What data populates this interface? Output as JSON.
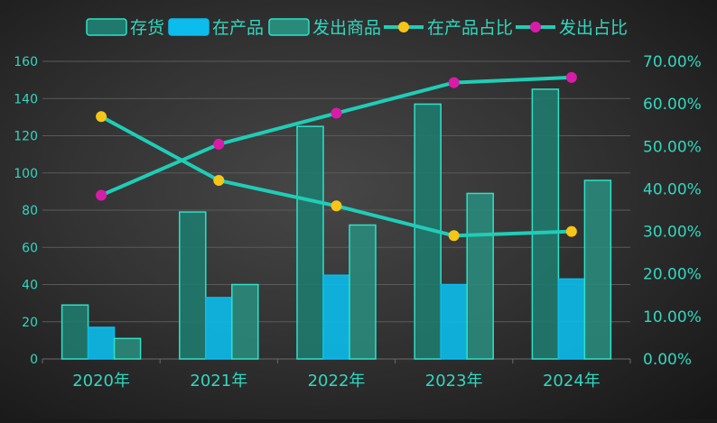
{
  "chart_data": {
    "type": "bar",
    "categories": [
      "2020年",
      "2021年",
      "2022年",
      "2023年",
      "2024年"
    ],
    "series": [
      {
        "name": "存货",
        "type": "bar",
        "axis": "left",
        "color": "#1f7a6d",
        "stroke": "#2fe0c8",
        "values": [
          29,
          79,
          125,
          137,
          145
        ]
      },
      {
        "name": "在产品",
        "type": "bar",
        "axis": "left",
        "color": "#0bbcec",
        "stroke": "#0bbcec",
        "values": [
          17,
          33,
          45,
          40,
          43
        ]
      },
      {
        "name": "发出商品",
        "type": "bar",
        "axis": "left",
        "color": "#2a8a7a",
        "stroke": "#2fe0c8",
        "values": [
          11,
          40,
          72,
          89,
          96
        ]
      },
      {
        "name": "在产品占比",
        "type": "line",
        "axis": "right",
        "color": "#1fcdb7",
        "marker": "#f5c518",
        "values": [
          57.0,
          42.0,
          36.0,
          29.0,
          30.0
        ]
      },
      {
        "name": "发出占比",
        "type": "line",
        "axis": "right",
        "color": "#1fcdb7",
        "marker": "#d91ca8",
        "values": [
          38.5,
          50.5,
          57.8,
          65.0,
          66.2
        ]
      }
    ],
    "y_left": {
      "min": 0,
      "max": 160,
      "step": 20,
      "ticks": [
        "0",
        "20",
        "40",
        "60",
        "80",
        "100",
        "120",
        "140",
        "160"
      ]
    },
    "y_right": {
      "min": 0,
      "max": 70,
      "step": 10,
      "ticks": [
        "0.00%",
        "10.00%",
        "20.00%",
        "30.00%",
        "40.00%",
        "50.00%",
        "60.00%",
        "70.00%"
      ]
    },
    "grid": true,
    "legend_position": "top-right",
    "colors": {
      "axis_text": "#33d6bf",
      "grid": "#5a5a5a",
      "axis_line": "#6a6a6a"
    }
  }
}
